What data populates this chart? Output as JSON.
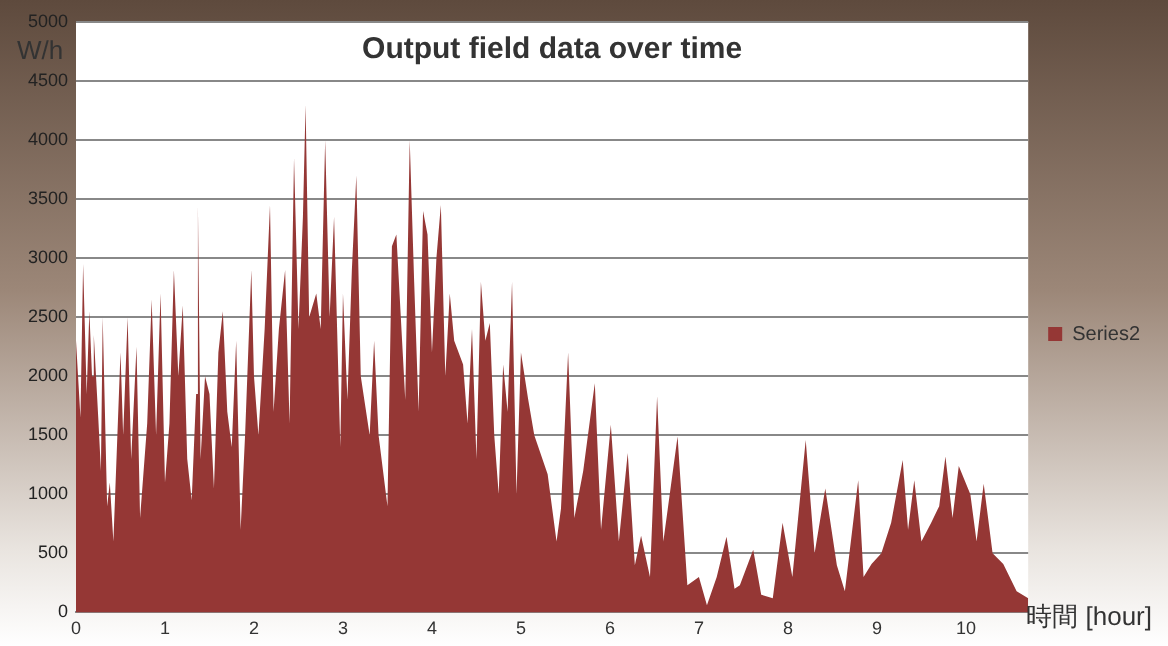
{
  "chart_data": {
    "type": "area",
    "title": "Output field data over time",
    "xlabel": "時間 [hour]",
    "ylabel": "W/h",
    "x": [
      0,
      0.05,
      0.08,
      0.12,
      0.15,
      0.18,
      0.2,
      0.25,
      0.28,
      0.3,
      0.35,
      0.38,
      0.42,
      0.45,
      0.5,
      0.53,
      0.58,
      0.62,
      0.68,
      0.72,
      0.8,
      0.85,
      0.9,
      0.95,
      1.0,
      1.05,
      1.1,
      1.15,
      1.2,
      1.25,
      1.3,
      1.35,
      1.37,
      1.4,
      1.45,
      1.5,
      1.55,
      1.6,
      1.65,
      1.7,
      1.75,
      1.8,
      1.85,
      1.9,
      1.97,
      2.0,
      2.05,
      2.12,
      2.18,
      2.22,
      2.28,
      2.35,
      2.4,
      2.45,
      2.5,
      2.55,
      2.58,
      2.62,
      2.7,
      2.75,
      2.8,
      2.85,
      2.9,
      2.97,
      3.0,
      3.05,
      3.1,
      3.15,
      3.2,
      3.3,
      3.35,
      3.4,
      3.5,
      3.55,
      3.6,
      3.7,
      3.75,
      3.8,
      3.85,
      3.9,
      3.95,
      4.0,
      4.05,
      4.1,
      4.15,
      4.2,
      4.25,
      4.35,
      4.4,
      4.45,
      4.5,
      4.55,
      4.6,
      4.65,
      4.7,
      4.75,
      4.8,
      4.85,
      4.9,
      4.95,
      5.0,
      5.08,
      5.15,
      5.3,
      5.4,
      5.45,
      5.53,
      5.6,
      5.7,
      5.83,
      5.9,
      6.01,
      6.1,
      6.2,
      6.28,
      6.35,
      6.45,
      6.53,
      6.6,
      6.76,
      6.87,
      7.0,
      7.09,
      7.2,
      7.31,
      7.4,
      7.46,
      7.61,
      7.7,
      7.83,
      7.94,
      8.05,
      8.2,
      8.3,
      8.42,
      8.55,
      8.64,
      8.79,
      8.85,
      8.94,
      9.05,
      9.16,
      9.29,
      9.35,
      9.42,
      9.5,
      9.61,
      9.7,
      9.77,
      9.85,
      9.92,
      10.05,
      10.12,
      10.2,
      10.3,
      10.42,
      10.57,
      10.7
    ],
    "series": [
      {
        "name": "Series2",
        "color": "#953735",
        "values": [
          2300,
          1650,
          2950,
          1850,
          2550,
          2000,
          2350,
          1650,
          1200,
          2500,
          900,
          1100,
          600,
          1200,
          2200,
          1500,
          2500,
          1300,
          2250,
          800,
          1600,
          2650,
          1500,
          2700,
          1100,
          1600,
          2900,
          2000,
          2600,
          1300,
          950,
          1850,
          3450,
          1300,
          2000,
          1850,
          1050,
          2200,
          2550,
          1700,
          1400,
          2300,
          700,
          1500,
          2900,
          2000,
          1500,
          2400,
          3450,
          1700,
          2400,
          2900,
          1600,
          3850,
          2400,
          3350,
          4300,
          2500,
          2700,
          2400,
          4000,
          2500,
          3350,
          1400,
          2700,
          1800,
          2900,
          3700,
          2000,
          1500,
          2300,
          1500,
          900,
          3100,
          3200,
          1800,
          4000,
          2800,
          1700,
          3400,
          3200,
          2200,
          3000,
          3450,
          2000,
          2700,
          2300,
          2100,
          1600,
          2400,
          1300,
          2800,
          2300,
          2450,
          1500,
          1000,
          2100,
          1700,
          2800,
          1000,
          2200,
          1810,
          1500,
          1170,
          600,
          880,
          2200,
          800,
          1200,
          1940,
          700,
          1590,
          600,
          1350,
          400,
          650,
          300,
          1830,
          600,
          1490,
          230,
          300,
          60,
          300,
          640,
          200,
          230,
          530,
          150,
          120,
          760,
          300,
          1460,
          500,
          1050,
          400,
          180,
          1120,
          300,
          410,
          500,
          760,
          1290,
          700,
          1120,
          600,
          760,
          900,
          1320,
          800,
          1240,
          1000,
          600,
          1090,
          500,
          410,
          180,
          120
        ]
      }
    ],
    "xlim": [
      0,
      10.7
    ],
    "xticks": [
      0,
      1,
      2,
      3,
      4,
      5,
      6,
      7,
      8,
      9,
      10
    ],
    "ylim": [
      0,
      5000
    ],
    "yticks": [
      0,
      500,
      1000,
      1500,
      2000,
      2500,
      3000,
      3500,
      4000,
      4500,
      5000
    ],
    "grid": "y",
    "legend": "right"
  }
}
